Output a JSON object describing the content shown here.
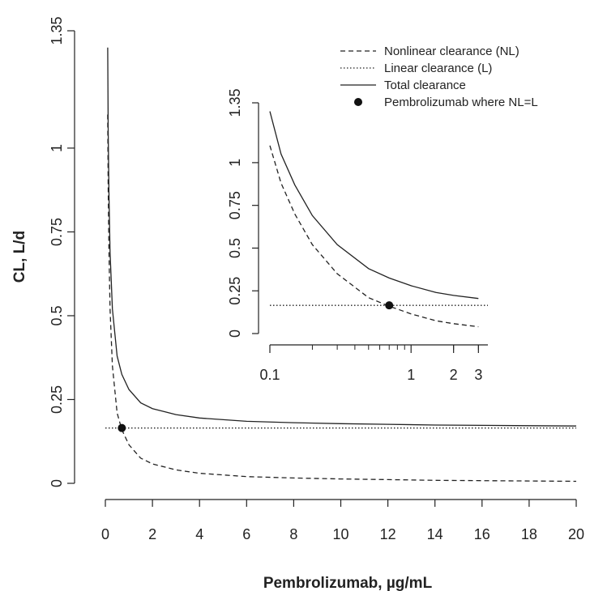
{
  "chart_data": {
    "type": "line",
    "xlabel": "Pembrolizumab, µg/mL",
    "ylabel": "CL, L/d",
    "xlim": [
      0,
      20
    ],
    "ylim": [
      0,
      1.35
    ],
    "x_ticks": [
      "0",
      "2",
      "4",
      "6",
      "8",
      "10",
      "12",
      "14",
      "16",
      "18",
      "20"
    ],
    "y_ticks": [
      "0",
      "0.25",
      "0.5",
      "0.75",
      "1",
      "1.35"
    ],
    "grid": false,
    "legend_position": "top-right",
    "series": [
      {
        "name": "Nonlinear clearance (NL)",
        "line_style": "dashed",
        "x": [
          0.1,
          0.12,
          0.15,
          0.2,
          0.3,
          0.5,
          0.7,
          1,
          1.5,
          2,
          3,
          4,
          6,
          8,
          10,
          12,
          14,
          16,
          18,
          20
        ],
        "y": [
          1.1,
          0.88,
          0.7,
          0.52,
          0.35,
          0.21,
          0.16,
          0.115,
          0.075,
          0.058,
          0.04,
          0.03,
          0.02,
          0.016,
          0.013,
          0.011,
          0.009,
          0.008,
          0.007,
          0.006
        ]
      },
      {
        "name": "Linear clearance (L)",
        "line_style": "dotted",
        "x": [
          0,
          20
        ],
        "y": [
          0.165,
          0.165
        ]
      },
      {
        "name": "Total clearance",
        "line_style": "solid",
        "x": [
          0.1,
          0.12,
          0.15,
          0.2,
          0.3,
          0.5,
          0.7,
          1,
          1.5,
          2,
          3,
          4,
          6,
          8,
          10,
          12,
          14,
          16,
          18,
          20
        ],
        "y": [
          1.3,
          1.05,
          0.87,
          0.69,
          0.52,
          0.38,
          0.325,
          0.28,
          0.24,
          0.223,
          0.205,
          0.195,
          0.185,
          0.181,
          0.178,
          0.176,
          0.174,
          0.173,
          0.172,
          0.171
        ]
      },
      {
        "name": "Pembrolizumab where NL=L",
        "line_style": "point",
        "x": [
          0.7
        ],
        "y": [
          0.165
        ]
      }
    ],
    "inset": {
      "x_scale": "log",
      "xlim": [
        0.1,
        3.5
      ],
      "ylim": [
        0,
        1.35
      ],
      "x_ticks": [
        {
          "value": 0.1,
          "label": "0.1"
        },
        {
          "value": 1,
          "label": "1"
        },
        {
          "value": 2,
          "label": "2"
        },
        {
          "value": 3,
          "label": "3"
        }
      ],
      "y_ticks": [
        "0",
        "0.25",
        "0.5",
        "0.75",
        "1",
        "1.35"
      ]
    }
  }
}
